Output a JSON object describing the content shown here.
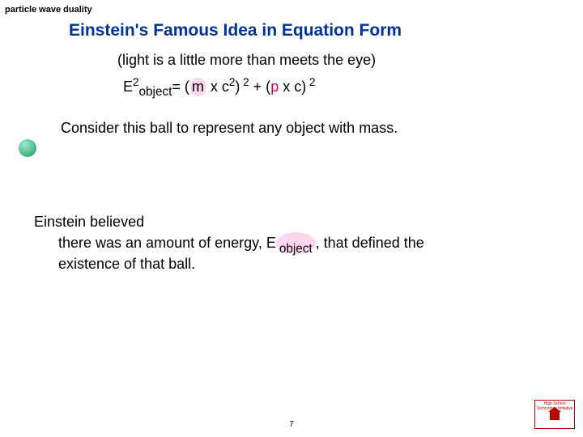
{
  "topic_label": "particle wave duality",
  "title": "Einstein's Famous Idea in Equation Form",
  "subtitle": "(light is a little more than meets the eye)",
  "equation": {
    "E": "E",
    "sup2_a": "2",
    "sub_object": "object",
    "eq": "= (",
    "m": "m",
    "xc": " x c",
    "sup2_b": "2",
    "close1": ")",
    "sup2_c": " 2",
    "plus": " +   (",
    "p": "p",
    "xc2": " x c",
    "close2": ")",
    "sup2_d": " 2"
  },
  "consider": "Consider this ball to represent any object with mass.",
  "belief_line1": "Einstein believed",
  "belief_line2a": "there was an amount of energy, E",
  "belief_sub": " object ",
  "belief_line2b": ", that defined the",
  "belief_line3": "existence of that ball.",
  "pagenum": "7",
  "logo_text": "High School Technology Initiative",
  "colors": {
    "title": "#003399",
    "highlight_bg": "#ffd6f0",
    "p_color": "#cc0066",
    "ball_light": "#a0e8d0",
    "ball_mid": "#4fc090",
    "ball_dark": "#2f8560",
    "logo_border": "#b00"
  },
  "fontsize": {
    "topic": 11,
    "title": 21,
    "body": 18,
    "pagenum": 10
  }
}
